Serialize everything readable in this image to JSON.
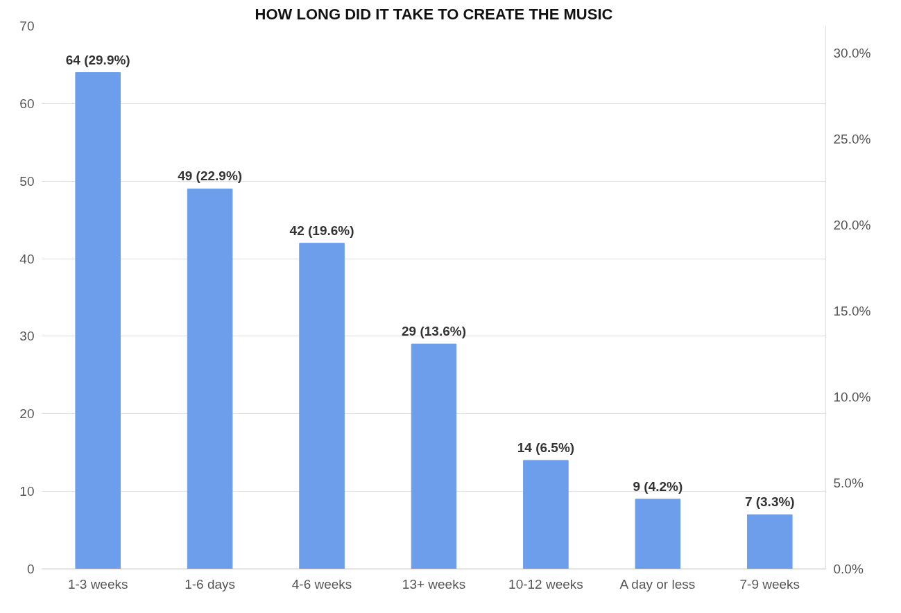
{
  "chart_data": {
    "type": "bar",
    "title": "HOW LONG DID IT TAKE TO CREATE THE MUSIC",
    "categories": [
      "1-3 weeks",
      "1-6 days",
      "4-6 weeks",
      "13+ weeks",
      "10-12 weeks",
      "A day or less",
      "7-9 weeks"
    ],
    "values": [
      64,
      49,
      42,
      29,
      14,
      9,
      7
    ],
    "value_labels": [
      "64 (29.9%)",
      "49 (22.9%)",
      "42 (19.6%)",
      "29 (13.6%)",
      "14 (6.5%)",
      "9 (4.2%)",
      "7 (3.3%)"
    ],
    "color": "#6d9eeb",
    "ylim": [
      0,
      70
    ],
    "yticks": [
      0,
      10,
      20,
      30,
      40,
      50,
      60,
      70
    ],
    "y2lim": [
      0,
      31.56
    ],
    "y2ticks": [
      {
        "value": 0,
        "label": "0.0%"
      },
      {
        "value": 5,
        "label": "5.0%"
      },
      {
        "value": 10,
        "label": "10.0%"
      },
      {
        "value": 15,
        "label": "15.0%"
      },
      {
        "value": 20,
        "label": "20.0%"
      },
      {
        "value": 25,
        "label": "25.0%"
      },
      {
        "value": 30,
        "label": "30.0%"
      }
    ],
    "grid": "y"
  }
}
